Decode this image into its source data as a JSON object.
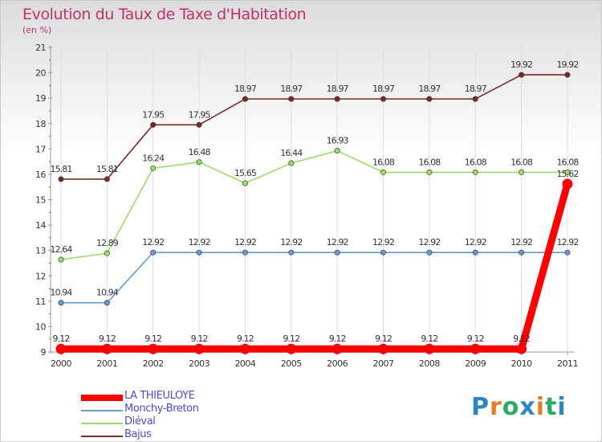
{
  "title": "Evolution du Taux de Taxe d'Habitation",
  "subtitle": "(en %)",
  "logo": {
    "letters": [
      "P",
      "r",
      "o",
      "x",
      "i",
      "t",
      "i"
    ],
    "colors": [
      "#2e86c1",
      "#e67e22",
      "#27ae60",
      "#2e86c1",
      "#e67e22",
      "#27ae60",
      "#2e86c1"
    ]
  },
  "chart_data": {
    "type": "line",
    "title": "Evolution du Taux de Taxe d'Habitation",
    "ylabel": "(en %)",
    "x": [
      "2000",
      "2001",
      "2002",
      "2003",
      "2004",
      "2005",
      "2006",
      "2007",
      "2008",
      "2009",
      "2010",
      "2011"
    ],
    "ylim": [
      9,
      21
    ],
    "yticks": [
      "9",
      "10",
      "11",
      "12",
      "13",
      "14",
      "15",
      "16",
      "17",
      "18",
      "19",
      "20",
      "21"
    ],
    "grid": "vertical",
    "legend": "bottom-left",
    "series": [
      {
        "name": "LA THIEULOYE",
        "color": "#ff0000",
        "thick": true,
        "values": [
          9.12,
          9.12,
          9.12,
          9.12,
          9.12,
          9.12,
          9.12,
          9.12,
          9.12,
          9.12,
          9.12,
          15.62
        ],
        "labels": [
          "9.12",
          "9.12",
          "9.12",
          "9.12",
          "9.12",
          "9.12",
          "9.12",
          "9.12",
          "9.12",
          "9.12",
          "9.12",
          "15.62"
        ]
      },
      {
        "name": "Monchy-Breton",
        "color": "#6699cc",
        "thick": false,
        "values": [
          10.94,
          10.94,
          12.92,
          12.92,
          12.92,
          12.92,
          12.92,
          12.92,
          12.92,
          12.92,
          12.92,
          12.92
        ],
        "labels": [
          "10.94",
          "10.94",
          "12.92",
          "12.92",
          "12.92",
          "12.92",
          "12.92",
          "12.92",
          "12.92",
          "12.92",
          "12.92",
          "12.92"
        ]
      },
      {
        "name": "Diéval",
        "color": "#99dd66",
        "thick": false,
        "values": [
          12.64,
          12.89,
          16.24,
          16.48,
          15.65,
          16.44,
          16.93,
          16.08,
          16.08,
          16.08,
          16.08,
          16.08
        ],
        "labels": [
          "12.64",
          "12.89",
          "16.24",
          "16.48",
          "15.65",
          "16.44",
          "16.93",
          "16.08",
          "16.08",
          "16.08",
          "16.08",
          "16.08"
        ]
      },
      {
        "name": "Bajus",
        "color": "#7a2a2a",
        "thick": false,
        "values": [
          15.81,
          15.81,
          17.95,
          17.95,
          18.97,
          18.97,
          18.97,
          18.97,
          18.97,
          18.97,
          19.92,
          19.92
        ],
        "labels": [
          "15.81",
          "15.81",
          "17.95",
          "17.95",
          "18.97",
          "18.97",
          "18.97",
          "18.97",
          "18.97",
          "18.97",
          "19.92",
          "19.92"
        ]
      }
    ]
  }
}
